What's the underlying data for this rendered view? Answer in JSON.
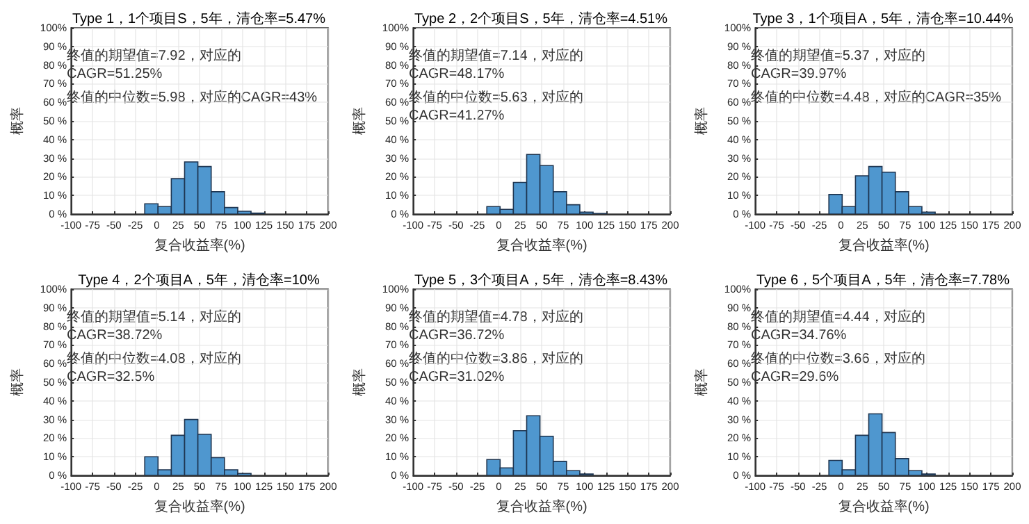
{
  "chart_data": [
    {
      "type": "histogram",
      "title": "Type 1，1个项目S，5年，清仓率=5.47%",
      "xlabel": "复合收益率(%)",
      "ylabel": "概率",
      "annotations": [
        "终值的期望值=7.92，对应的CAGR=51.25%",
        "终值的中位数=5.98，对应的CAGR=43%"
      ],
      "bins": [
        -14,
        1.5,
        17,
        32.5,
        48,
        63.5,
        79,
        94.5,
        110,
        125.5
      ],
      "values": [
        5.5,
        4,
        19,
        28,
        25.5,
        12,
        3.5,
        1.5,
        0.5
      ],
      "color": "#4f97cf",
      "xlim": [
        -100,
        200
      ],
      "ylim": [
        0,
        100
      ],
      "xticks": [
        -100,
        -75,
        -50,
        -25,
        0,
        25,
        50,
        75,
        100,
        125,
        150,
        175,
        200
      ],
      "yticks": [
        {
          "value": 0,
          "label": "0 %"
        },
        {
          "value": 10,
          "label": "10 %"
        },
        {
          "value": 20,
          "label": "20 %"
        },
        {
          "value": 30,
          "label": "30 %"
        },
        {
          "value": 40,
          "label": "40 %"
        },
        {
          "value": 50,
          "label": "50 %"
        },
        {
          "value": 60,
          "label": "60 %"
        },
        {
          "value": 70,
          "label": "70 %"
        },
        {
          "value": 80,
          "label": "80 %"
        },
        {
          "value": 90,
          "label": "90 %"
        },
        {
          "value": 100,
          "label": "100%"
        }
      ],
      "grid": true
    },
    {
      "type": "histogram",
      "title": "Type 2，2个项目S，5年，清仓率=4.51%",
      "xlabel": "复合收益率(%)",
      "ylabel": "概率",
      "annotations": [
        "终值的期望值=7.14，对应的CAGR=48.17%",
        "终值的中位数=5.63，对应的CAGR=41.27%"
      ],
      "bins": [
        -14,
        1.5,
        17,
        32.5,
        48,
        63.5,
        79,
        94.5,
        110,
        125.5
      ],
      "values": [
        4,
        2.5,
        17,
        32,
        26,
        12,
        5,
        1,
        0.3
      ],
      "color": "#4f97cf",
      "xlim": [
        -100,
        200
      ],
      "ylim": [
        0,
        100
      ],
      "xticks": [
        -100,
        -75,
        -50,
        -25,
        0,
        25,
        50,
        75,
        100,
        125,
        150,
        175,
        200
      ],
      "yticks": [
        {
          "value": 0,
          "label": "0 %"
        },
        {
          "value": 10,
          "label": "10 %"
        },
        {
          "value": 20,
          "label": "20 %"
        },
        {
          "value": 30,
          "label": "30 %"
        },
        {
          "value": 40,
          "label": "40 %"
        },
        {
          "value": 50,
          "label": "50 %"
        },
        {
          "value": 60,
          "label": "60 %"
        },
        {
          "value": 70,
          "label": "70 %"
        },
        {
          "value": 80,
          "label": "80 %"
        },
        {
          "value": 90,
          "label": "90 %"
        },
        {
          "value": 100,
          "label": "100%"
        }
      ],
      "grid": true
    },
    {
      "type": "histogram",
      "title": "Type 3，1个项目A，5年，清仓率=10.44%",
      "xlabel": "复合收益率(%)",
      "ylabel": "概率",
      "annotations": [
        "终值的期望值=5.37，对应的CAGR=39.97%",
        "终值的中位数=4.48，对应的CAGR=35%"
      ],
      "bins": [
        -14,
        1.5,
        17,
        32.5,
        48,
        63.5,
        79,
        94.5,
        110
      ],
      "values": [
        10.5,
        4,
        20.5,
        25.5,
        22.5,
        12,
        4,
        1
      ],
      "color": "#4f97cf",
      "xlim": [
        -100,
        200
      ],
      "ylim": [
        0,
        100
      ],
      "xticks": [
        -100,
        -75,
        -50,
        -25,
        0,
        25,
        50,
        75,
        100,
        125,
        150,
        175,
        200
      ],
      "yticks": [
        {
          "value": 0,
          "label": "0 %"
        },
        {
          "value": 10,
          "label": "10 %"
        },
        {
          "value": 20,
          "label": "20 %"
        },
        {
          "value": 30,
          "label": "30 %"
        },
        {
          "value": 40,
          "label": "40 %"
        },
        {
          "value": 50,
          "label": "50 %"
        },
        {
          "value": 60,
          "label": "60 %"
        },
        {
          "value": 70,
          "label": "70 %"
        },
        {
          "value": 80,
          "label": "80 %"
        },
        {
          "value": 90,
          "label": "90 %"
        },
        {
          "value": 100,
          "label": "100%"
        }
      ],
      "grid": true
    },
    {
      "type": "histogram",
      "title": "Type 4，2个项目A，5年，清仓率=10%",
      "xlabel": "复合收益率(%)",
      "ylabel": "概率",
      "annotations": [
        "终值的期望值=5.14，对应的CAGR=38.72%",
        "终值的中位数=4.08，对应的CAGR=32.5%"
      ],
      "bins": [
        -14,
        1.5,
        17,
        32.5,
        48,
        63.5,
        79,
        94.5,
        110
      ],
      "values": [
        10,
        3,
        21.5,
        30,
        22,
        9.5,
        3,
        1
      ],
      "color": "#4f97cf",
      "xlim": [
        -100,
        200
      ],
      "ylim": [
        0,
        100
      ],
      "xticks": [
        -100,
        -75,
        -50,
        -25,
        0,
        25,
        50,
        75,
        100,
        125,
        150,
        175,
        200
      ],
      "yticks": [
        {
          "value": 0,
          "label": "0 %"
        },
        {
          "value": 10,
          "label": "10 %"
        },
        {
          "value": 20,
          "label": "20 %"
        },
        {
          "value": 30,
          "label": "30 %"
        },
        {
          "value": 40,
          "label": "40 %"
        },
        {
          "value": 50,
          "label": "50 %"
        },
        {
          "value": 60,
          "label": "60 %"
        },
        {
          "value": 70,
          "label": "70 %"
        },
        {
          "value": 80,
          "label": "80 %"
        },
        {
          "value": 90,
          "label": "90 %"
        },
        {
          "value": 100,
          "label": "100%"
        }
      ],
      "grid": true
    },
    {
      "type": "histogram",
      "title": "Type 5，3个项目A，5年，清仓率=8.43%",
      "xlabel": "复合收益率(%)",
      "ylabel": "概率",
      "annotations": [
        "终值的期望值=4.78，对应的CAGR=36.72%",
        "终值的中位数=3.86，对应的CAGR=31.02%"
      ],
      "bins": [
        -14,
        1.5,
        17,
        32.5,
        48,
        63.5,
        79,
        94.5,
        110
      ],
      "values": [
        8.5,
        4,
        24,
        32,
        21,
        7.5,
        2.5,
        0.7
      ],
      "color": "#4f97cf",
      "xlim": [
        -100,
        200
      ],
      "ylim": [
        0,
        100
      ],
      "xticks": [
        -100,
        -75,
        -50,
        -25,
        0,
        25,
        50,
        75,
        100,
        125,
        150,
        175,
        200
      ],
      "yticks": [
        {
          "value": 0,
          "label": "0 %"
        },
        {
          "value": 10,
          "label": "10 %"
        },
        {
          "value": 20,
          "label": "20 %"
        },
        {
          "value": 30,
          "label": "30 %"
        },
        {
          "value": 40,
          "label": "40 %"
        },
        {
          "value": 50,
          "label": "50 %"
        },
        {
          "value": 60,
          "label": "60 %"
        },
        {
          "value": 70,
          "label": "70 %"
        },
        {
          "value": 80,
          "label": "80 %"
        },
        {
          "value": 90,
          "label": "90 %"
        },
        {
          "value": 100,
          "label": "100%"
        }
      ],
      "grid": true
    },
    {
      "type": "histogram",
      "title": "Type 6，5个项目A，5年，清仓率=7.78%",
      "xlabel": "复合收益率(%)",
      "ylabel": "概率",
      "annotations": [
        "终值的期望值=4.44，对应的CAGR=34.76%",
        "终值的中位数=3.66，对应的CAGR=29.6%"
      ],
      "bins": [
        -14,
        1.5,
        17,
        32.5,
        48,
        63.5,
        79,
        94.5,
        110
      ],
      "values": [
        8,
        3,
        21.5,
        33,
        23,
        9,
        2.5,
        0.7
      ],
      "color": "#4f97cf",
      "xlim": [
        -100,
        200
      ],
      "ylim": [
        0,
        100
      ],
      "xticks": [
        -100,
        -75,
        -50,
        -25,
        0,
        25,
        50,
        75,
        100,
        125,
        150,
        175,
        200
      ],
      "yticks": [
        {
          "value": 0,
          "label": "0 %"
        },
        {
          "value": 10,
          "label": "10 %"
        },
        {
          "value": 20,
          "label": "20 %"
        },
        {
          "value": 30,
          "label": "30 %"
        },
        {
          "value": 40,
          "label": "40 %"
        },
        {
          "value": 50,
          "label": "50 %"
        },
        {
          "value": 60,
          "label": "60 %"
        },
        {
          "value": 70,
          "label": "70 %"
        },
        {
          "value": 80,
          "label": "80 %"
        },
        {
          "value": 90,
          "label": "90 %"
        },
        {
          "value": 100,
          "label": "100%"
        }
      ],
      "grid": true
    }
  ]
}
